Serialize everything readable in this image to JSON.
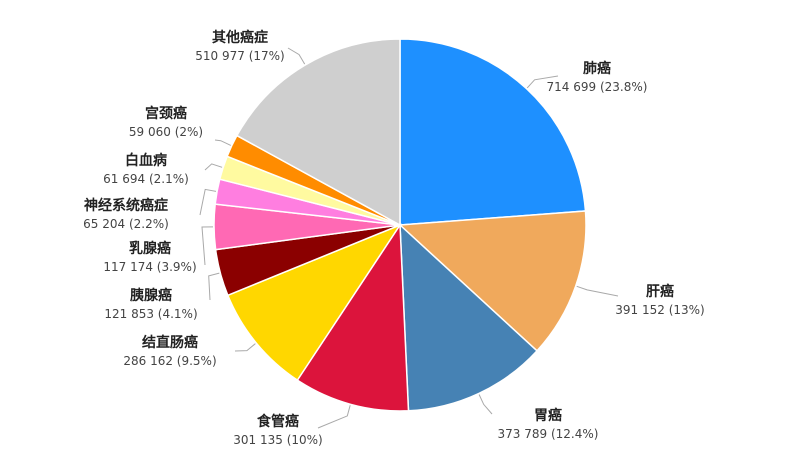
{
  "chart_data": {
    "type": "pie",
    "title": "",
    "legend": "none",
    "slices": [
      {
        "name": "肺癌",
        "label": "714 699 (23.8%)",
        "value": 714699,
        "percent": 23.8,
        "color": "#1e90ff"
      },
      {
        "name": "肝癌",
        "label": "391 152 (13%)",
        "value": 391152,
        "percent": 13,
        "color": "#f0a95c"
      },
      {
        "name": "胃癌",
        "label": "373 789 (12.4%)",
        "value": 373789,
        "percent": 12.4,
        "color": "#4682b4"
      },
      {
        "name": "食管癌",
        "label": "301 135 (10%)",
        "value": 301135,
        "percent": 10,
        "color": "#dc143c"
      },
      {
        "name": "结直肠癌",
        "label": "286 162 (9.5%)",
        "value": 286162,
        "percent": 9.5,
        "color": "#ffd700"
      },
      {
        "name": "胰腺癌",
        "label": "121 853 (4.1%)",
        "value": 121853,
        "percent": 4.1,
        "color": "#8b0000"
      },
      {
        "name": "乳腺癌",
        "label": "117 174 (3.9%)",
        "value": 117174,
        "percent": 3.9,
        "color": "#ff69b4"
      },
      {
        "name": "神经系统癌症",
        "label": "65 204 (2.2%)",
        "value": 65204,
        "percent": 2.2,
        "color": "#ff7ee0"
      },
      {
        "name": "白血病",
        "label": "61 694 (2.1%)",
        "value": 61694,
        "percent": 2.1,
        "color": "#fffaa0"
      },
      {
        "name": "宫颈癌",
        "label": "59 060 (2%)",
        "value": 59060,
        "percent": 2,
        "color": "#ff8c00"
      },
      {
        "name": "其他癌症",
        "label": "510 977 (17%)",
        "value": 510977,
        "percent": 17,
        "color": "#cfcfcf"
      }
    ]
  }
}
